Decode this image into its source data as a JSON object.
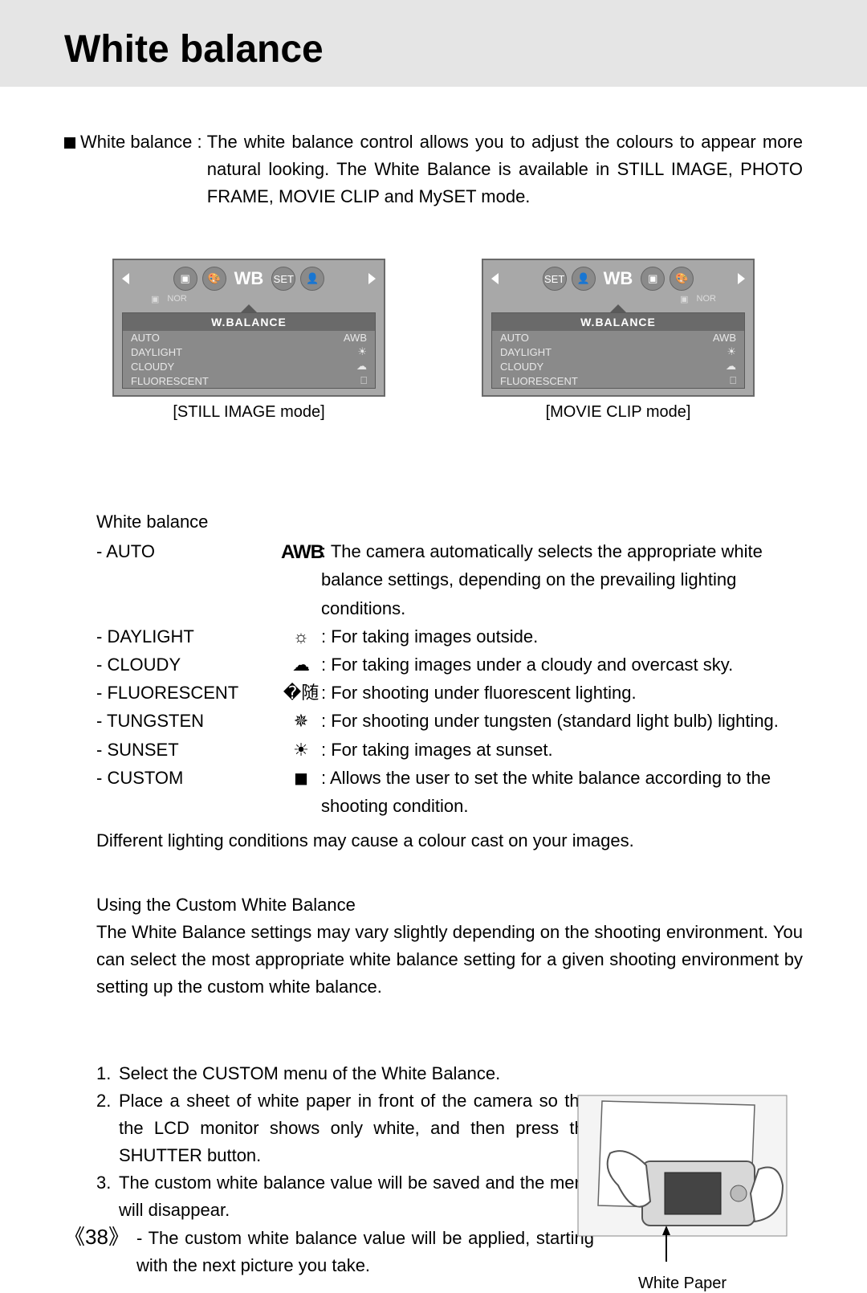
{
  "title": "White balance",
  "intro": {
    "label": "White balance :",
    "body": "The white balance control allows you to adjust the colours to appear more natural looking. The White Balance is available in STILL IMAGE, PHOTO FRAME, MOVIE CLIP and MySET mode."
  },
  "lcd": {
    "wb_label": "WB",
    "panel_title": "W.BALANCE",
    "items": [
      {
        "name": "AUTO",
        "sym": "AWB"
      },
      {
        "name": "DAYLIGHT",
        "sym": "☀"
      },
      {
        "name": "CLOUDY",
        "sym": "☁"
      },
      {
        "name": "FLUORESCENT",
        "sym": "⎕"
      }
    ],
    "caption_left": "[STILL IMAGE mode]",
    "caption_right": "[MOVIE CLIP mode]"
  },
  "wb_heading": "White balance",
  "wb_modes": [
    {
      "name": "- AUTO",
      "icon": "AWB",
      "icon_class": "awb-txt",
      "desc": ": The camera automatically selects the appropriate white balance settings, depending on the prevailing lighting conditions."
    },
    {
      "name": "- DAYLIGHT",
      "icon": "☼",
      "desc": ": For taking images outside."
    },
    {
      "name": "- CLOUDY",
      "icon": "☁",
      "desc": ": For taking images under a cloudy and overcast sky."
    },
    {
      "name": "- FLUORESCENT",
      "icon": "�随",
      "desc": ": For shooting under fluorescent lighting."
    },
    {
      "name": "- TUNGSTEN",
      "icon": "✵",
      "desc": ": For shooting under tungsten (standard light bulb) lighting."
    },
    {
      "name": "- SUNSET",
      "icon": "☀",
      "desc": ": For taking images at sunset."
    },
    {
      "name": "- CUSTOM",
      "icon": "◼",
      "desc": ": Allows the user to set the white balance according to the shooting condition."
    }
  ],
  "note": "Different lighting conditions may cause a colour cast on your images.",
  "custom": {
    "heading": "Using the Custom White Balance",
    "body": "The White Balance settings may vary slightly depending on the shooting environment. You can select the most appropriate white balance setting for a given shooting environment by setting up the custom white balance."
  },
  "steps": [
    {
      "n": "1.",
      "t": "Select the CUSTOM menu of the White Balance."
    },
    {
      "n": "2.",
      "t": "Place a sheet of white paper in front of the camera so that the LCD monitor shows only white, and then press the SHUTTER button."
    },
    {
      "n": "3.",
      "t": "The custom white balance value will be saved and the menu will disappear."
    }
  ],
  "step_sub": "- The custom white balance value will be applied, starting with the next picture you take.",
  "illus_caption": "White Paper",
  "page_number": "38"
}
